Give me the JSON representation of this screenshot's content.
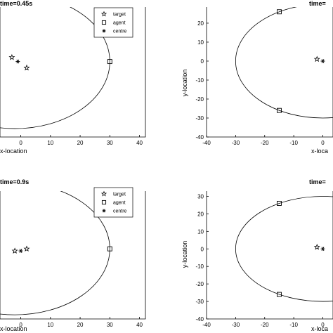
{
  "chart_data": [
    {
      "type": "scatter",
      "title": "time=0.45s",
      "xlabel": "x-location",
      "ylabel": "",
      "xticks": [
        0,
        10,
        20,
        30,
        40
      ],
      "xlim": [
        -7,
        42
      ],
      "ylim": [
        -34,
        28
      ],
      "legend": {
        "placement": "top-right",
        "entries": [
          "target",
          "agent",
          "centre"
        ]
      },
      "circle": {
        "cx": -2,
        "cy": 2,
        "r": 32
      },
      "series": [
        {
          "name": "target",
          "marker": "star",
          "points": [
            [
              -3,
              4
            ],
            [
              2,
              -1
            ]
          ]
        },
        {
          "name": "agent",
          "marker": "square",
          "points": [
            [
              30,
              2
            ]
          ]
        },
        {
          "name": "centre",
          "marker": "asterisk",
          "points": [
            [
              -1,
              2
            ]
          ]
        }
      ]
    },
    {
      "type": "scatter",
      "title": "time=",
      "xlabel": "x-loca",
      "ylabel": "y-location",
      "xticks": [
        -40,
        -30,
        -20,
        -10,
        0
      ],
      "yticks": [
        20,
        10,
        0,
        -10,
        -20,
        -30,
        -40
      ],
      "xlim": [
        -40,
        3.5
      ],
      "ylim": [
        -40,
        28.5
      ],
      "circle": {
        "cx": 0,
        "cy": 0,
        "r": 30
      },
      "series": [
        {
          "name": "target",
          "marker": "star",
          "points": [
            [
              -2,
              1
            ]
          ]
        },
        {
          "name": "agent",
          "marker": "square",
          "points": [
            [
              -15,
              26
            ],
            [
              -15,
              -26
            ]
          ]
        },
        {
          "name": "centre",
          "marker": "asterisk",
          "points": [
            [
              0,
              0
            ]
          ]
        }
      ]
    },
    {
      "type": "scatter",
      "title": "time=0.9s",
      "xlabel": "x-location",
      "ylabel": "",
      "xticks": [
        0,
        10,
        20,
        30,
        40
      ],
      "xlim": [
        -7,
        42
      ],
      "ylim": [
        -34,
        28
      ],
      "legend": {
        "placement": "top-right",
        "entries": [
          "target",
          "agent",
          "centre"
        ]
      },
      "circle": {
        "cx": -2,
        "cy": 0,
        "r": 32
      },
      "series": [
        {
          "name": "target",
          "marker": "star",
          "points": [
            [
              -2,
              -1
            ],
            [
              2,
              0
            ]
          ]
        },
        {
          "name": "agent",
          "marker": "square",
          "points": [
            [
              30,
              0
            ]
          ]
        },
        {
          "name": "centre",
          "marker": "asterisk",
          "points": [
            [
              0,
              -1
            ]
          ]
        }
      ]
    },
    {
      "type": "scatter",
      "title": "time=",
      "xlabel": "x-loca",
      "ylabel": "y-location",
      "xticks": [
        -40,
        -30,
        -20,
        -10,
        0
      ],
      "yticks": [
        30,
        20,
        10,
        0,
        -10,
        -20,
        -30,
        -40
      ],
      "xlim": [
        -40,
        3.5
      ],
      "ylim": [
        -40,
        33
      ],
      "circle": {
        "cx": 0,
        "cy": 0,
        "r": 30
      },
      "series": [
        {
          "name": "target",
          "marker": "star",
          "points": [
            [
              -2,
              1
            ]
          ]
        },
        {
          "name": "agent",
          "marker": "square",
          "points": [
            [
              -15,
              26
            ],
            [
              -15,
              -26
            ]
          ]
        },
        {
          "name": "centre",
          "marker": "asterisk",
          "points": [
            [
              0,
              0
            ]
          ]
        }
      ]
    }
  ]
}
